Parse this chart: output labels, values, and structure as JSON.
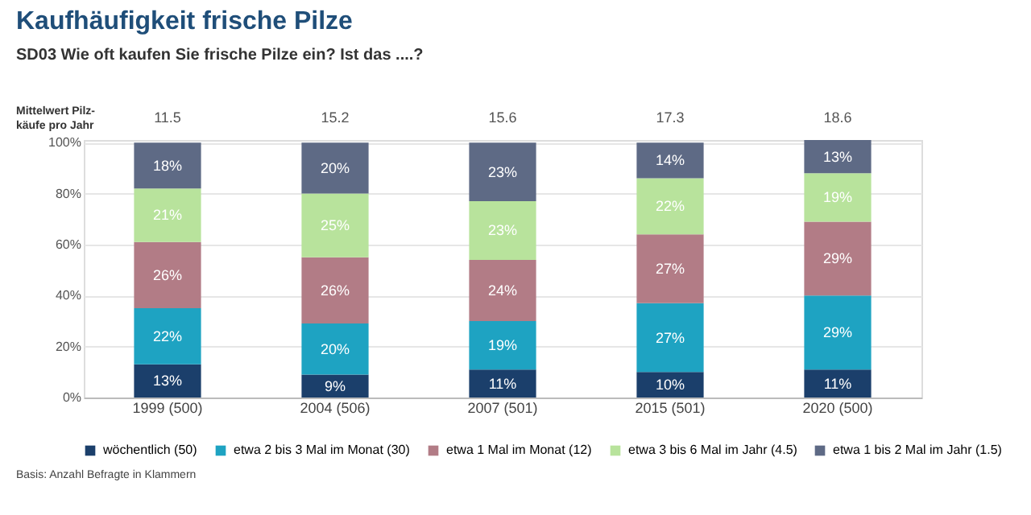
{
  "chart_data": {
    "type": "bar",
    "stacked": true,
    "title": "Kaufhäufigkeit frische Pilze",
    "subtitle": "SD03     Wie oft kaufen Sie frische Pilze ein? Ist das ....?",
    "categories": [
      "1999 (500)",
      "2004 (506)",
      "2007 (501)",
      "2015 (501)",
      "2020 (500)"
    ],
    "series": [
      {
        "name": "wöchentlich (50)",
        "color": "#1b3f6b",
        "values": [
          13,
          9,
          11,
          10,
          11
        ],
        "value_labels": [
          "13%",
          "9%",
          "11%",
          "10%",
          "11%"
        ]
      },
      {
        "name": "etwa 2 bis 3 Mal im Monat (30)",
        "color": "#1ea3c2",
        "values": [
          22,
          20,
          19,
          27,
          29
        ],
        "value_labels": [
          "22%",
          "20%",
          "19%",
          "27%",
          "29%"
        ]
      },
      {
        "name": "etwa 1 Mal im Monat (12)",
        "color": "#b27c86",
        "values": [
          26,
          26,
          24,
          27,
          29
        ],
        "value_labels": [
          "26%",
          "26%",
          "24%",
          "27%",
          "29%"
        ]
      },
      {
        "name": "etwa 3 bis 6 Mal im Jahr (4.5)",
        "color": "#b8e39c",
        "values": [
          21,
          25,
          23,
          22,
          19
        ],
        "value_labels": [
          "21%",
          "25%",
          "23%",
          "22%",
          "19%"
        ]
      },
      {
        "name": "etwa 1 bis 2 Mal im Jahr (1.5)",
        "color": "#5e6a85",
        "values": [
          18,
          20,
          23,
          14,
          13
        ],
        "value_labels": [
          "18%",
          "20%",
          "23%",
          "14%",
          "13%"
        ]
      }
    ],
    "ylim": [
      0,
      101
    ],
    "yticks": [
      {
        "value": 0,
        "label": "0%"
      },
      {
        "value": 20,
        "label": "20%"
      },
      {
        "value": 40,
        "label": "40%"
      },
      {
        "value": 60,
        "label": "60%"
      },
      {
        "value": 80,
        "label": "80%"
      },
      {
        "value": 100,
        "label": "100%"
      }
    ],
    "grid": "y",
    "legend": "bottom",
    "annotations": [
      "Mittelwert Pilz-\nkäufe pro Jahr",
      "11.5",
      "15.2",
      "15.6",
      "17.3",
      "18.6",
      "Basis: Anzahl Befragte in Klammern"
    ]
  }
}
